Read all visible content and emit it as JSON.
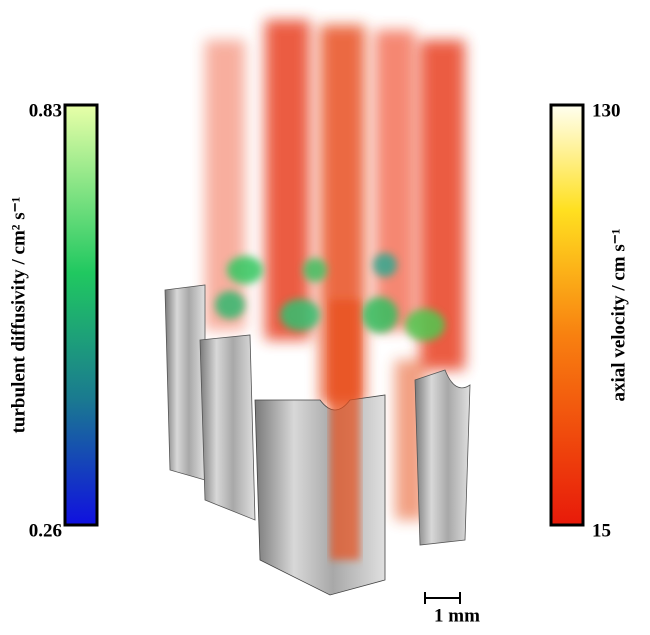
{
  "left_colorbar": {
    "label": "turbulent diffusivity / cm² s⁻¹",
    "max": "0.83",
    "min": "0.26"
  },
  "right_colorbar": {
    "label": "axial velocity / cm s⁻¹",
    "max": "130",
    "min": "15"
  },
  "scale_bar": {
    "label": "1 mm"
  }
}
